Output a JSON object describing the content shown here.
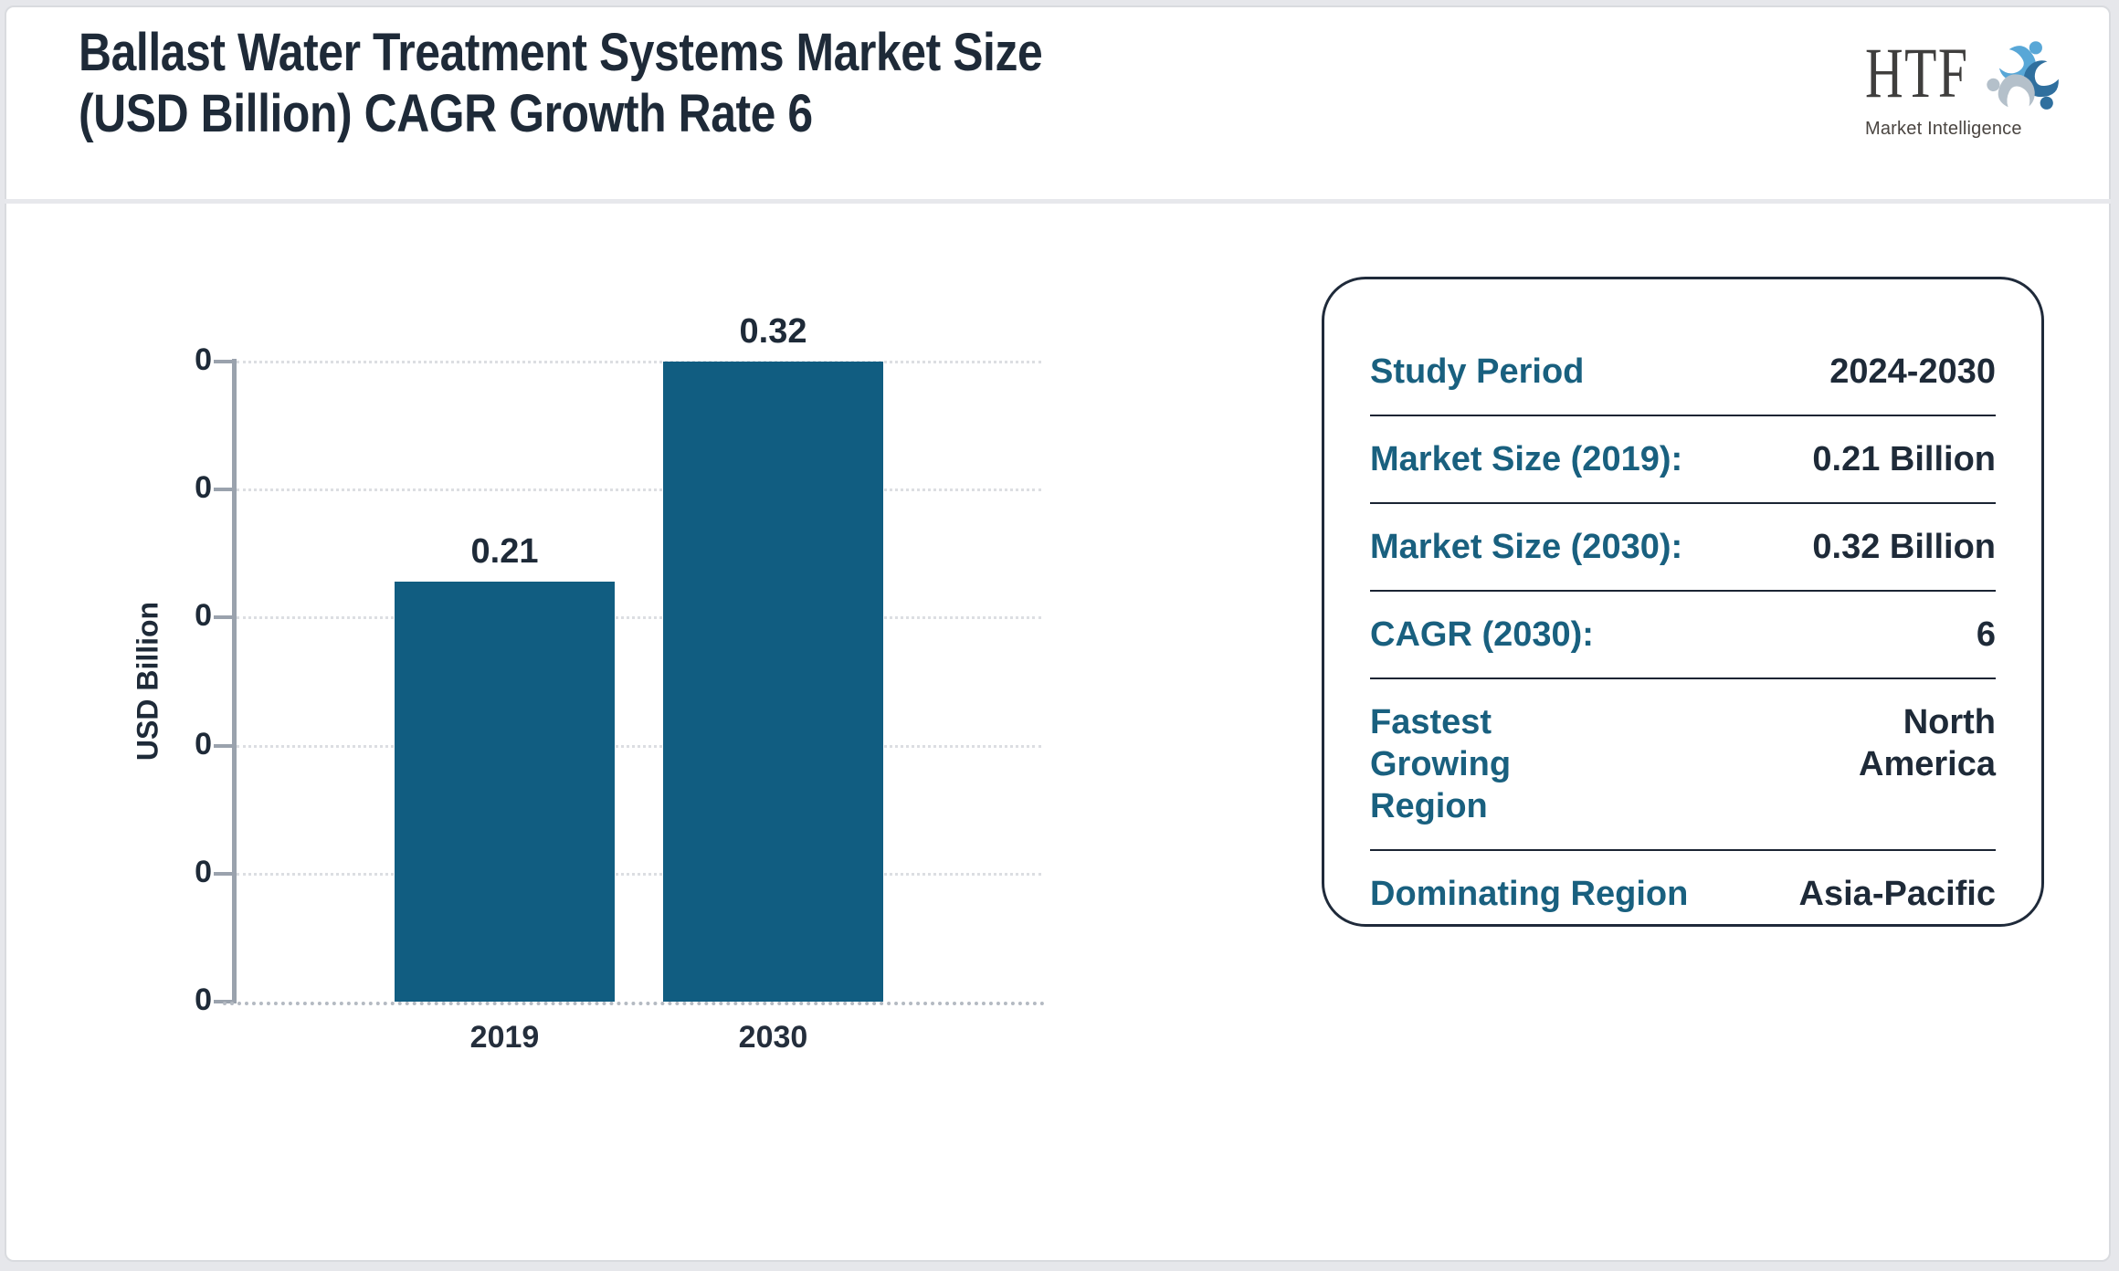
{
  "header": {
    "title_line1": "Ballast Water Treatment Systems Market Size",
    "title_line2": "(USD Billion) CAGR Growth Rate 6"
  },
  "logo": {
    "monogram": "HTF",
    "name": "Market Intelligence",
    "colors": {
      "light_blue": "#58a7d7",
      "dark_blue": "#2f6f9e",
      "gray": "#b4c0ca"
    }
  },
  "chart_data": {
    "type": "bar",
    "title": "Ballast Water Treatment Systems Market Size (USD Billion) CAGR Growth Rate 6",
    "categories": [
      "2019",
      "2030"
    ],
    "values": [
      0.21,
      0.32
    ],
    "bar_labels": [
      "0.21",
      "0.32"
    ],
    "xlabel": "",
    "ylabel": "USD Billion",
    "ylim": [
      0,
      0.32
    ],
    "y_tick_labels": [
      "0",
      "0",
      "0",
      "0",
      "0",
      "0"
    ],
    "grid": "horizontal-dotted",
    "legend": "none",
    "bar_color": "#115d81"
  },
  "summary_card": {
    "rows": [
      {
        "label": "Study Period",
        "value": "2024-2030"
      },
      {
        "label": "Market Size (2019):",
        "value": "0.21 Billion"
      },
      {
        "label": "Market Size (2030):",
        "value": "0.32 Billion"
      },
      {
        "label": "CAGR (2030):",
        "value": "6"
      },
      {
        "label": "Fastest Growing Region",
        "value": "North America"
      },
      {
        "label": "Dominating Region",
        "value": "Asia-Pacific"
      }
    ],
    "label_color": "#19607f",
    "value_color": "#1e2a38"
  }
}
